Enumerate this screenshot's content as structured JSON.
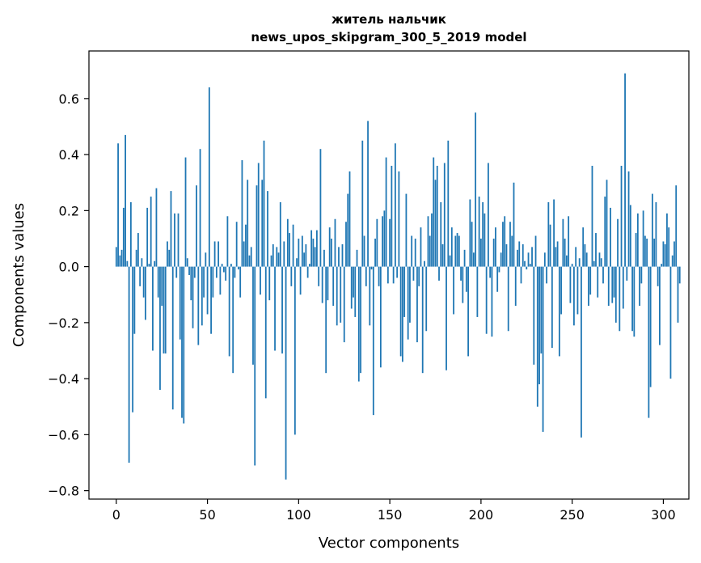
{
  "chart_data": {
    "type": "bar",
    "title": "житель нальчик",
    "subtitle": "news_upos_skipgram_300_5_2019 model",
    "xlabel": "Vector components",
    "ylabel": "Components values",
    "xlim": [
      -15,
      314
    ],
    "ylim": [
      -0.83,
      0.77
    ],
    "xticks": [
      0,
      50,
      100,
      150,
      200,
      250,
      300
    ],
    "yticks": [
      -0.8,
      -0.6,
      -0.4,
      -0.2,
      0.0,
      0.2,
      0.4,
      0.6
    ],
    "ytick_labels": [
      "−0.8",
      "−0.6",
      "−0.4",
      "−0.2",
      "0.0",
      "0.2",
      "0.4",
      "0.6"
    ],
    "bar_color": "#1f77b4",
    "grid": false,
    "values": [
      0.07,
      0.44,
      0.04,
      0.06,
      0.21,
      0.47,
      0.02,
      -0.7,
      0.23,
      -0.52,
      -0.24,
      0.06,
      0.12,
      -0.07,
      0.03,
      -0.11,
      -0.19,
      0.21,
      0.01,
      0.25,
      -0.3,
      0.02,
      0.28,
      -0.11,
      -0.44,
      -0.14,
      -0.31,
      -0.31,
      0.09,
      0.06,
      0.27,
      -0.51,
      0.19,
      -0.04,
      0.19,
      -0.26,
      -0.54,
      -0.56,
      0.39,
      0.03,
      -0.03,
      -0.12,
      -0.22,
      -0.04,
      0.29,
      -0.28,
      0.42,
      -0.21,
      -0.11,
      0.05,
      -0.17,
      0.64,
      -0.24,
      -0.11,
      0.09,
      -0.04,
      0.09,
      -0.1,
      0.01,
      -0.02,
      -0.05,
      0.18,
      -0.32,
      0.01,
      -0.38,
      -0.04,
      0.16,
      -0.01,
      -0.11,
      0.38,
      0.09,
      0.15,
      0.31,
      0.04,
      0.07,
      -0.35,
      -0.71,
      0.29,
      0.37,
      -0.1,
      0.31,
      0.45,
      -0.47,
      0.27,
      -0.12,
      0.04,
      0.08,
      -0.3,
      0.07,
      0.05,
      0.23,
      -0.31,
      0.09,
      -0.76,
      0.17,
      0.12,
      -0.07,
      0.15,
      -0.6,
      0.03,
      0.1,
      -0.1,
      0.11,
      0.05,
      0.08,
      -0.04,
      0.01,
      0.13,
      0.1,
      0.07,
      0.13,
      -0.07,
      0.42,
      -0.13,
      0.06,
      -0.38,
      -0.12,
      0.14,
      0.1,
      -0.14,
      0.17,
      -0.21,
      0.07,
      -0.2,
      0.08,
      -0.27,
      0.16,
      0.26,
      0.34,
      -0.15,
      -0.11,
      -0.18,
      0.06,
      -0.41,
      -0.38,
      0.45,
      0.11,
      -0.07,
      0.52,
      -0.21,
      -0.01,
      -0.53,
      0.1,
      0.17,
      -0.07,
      -0.36,
      0.18,
      0.2,
      0.39,
      -0.06,
      0.17,
      0.36,
      -0.06,
      0.44,
      -0.04,
      0.34,
      -0.32,
      -0.34,
      -0.18,
      0.26,
      -0.26,
      -0.2,
      0.11,
      -0.05,
      0.1,
      -0.27,
      -0.07,
      0.14,
      -0.38,
      0.02,
      -0.23,
      0.18,
      0.11,
      0.19,
      0.39,
      0.31,
      0.36,
      -0.05,
      0.23,
      0.08,
      0.37,
      -0.37,
      0.45,
      0.04,
      0.14,
      -0.17,
      0.11,
      0.12,
      0.11,
      -0.05,
      -0.13,
      0.06,
      -0.09,
      -0.32,
      0.24,
      0.16,
      0.05,
      0.55,
      -0.18,
      0.25,
      0.1,
      0.23,
      0.19,
      -0.24,
      0.37,
      -0.04,
      -0.25,
      0.1,
      0.14,
      -0.09,
      -0.02,
      0.05,
      0.16,
      0.18,
      0.08,
      -0.23,
      0.16,
      0.11,
      0.3,
      -0.14,
      0.06,
      0.09,
      -0.06,
      0.08,
      0.02,
      -0.01,
      0.05,
      0.01,
      0.07,
      -0.35,
      0.11,
      -0.5,
      -0.42,
      -0.31,
      -0.59,
      0.05,
      -0.06,
      0.23,
      0.15,
      -0.29,
      0.24,
      0.07,
      0.09,
      -0.32,
      -0.17,
      0.17,
      0.1,
      0.04,
      0.18,
      -0.13,
      0.01,
      -0.21,
      0.07,
      -0.17,
      0.03,
      -0.61,
      0.14,
      0.08,
      0.05,
      -0.14,
      -0.1,
      0.36,
      0.02,
      0.12,
      -0.11,
      0.05,
      0.03,
      -0.06,
      0.25,
      0.31,
      -0.14,
      0.21,
      -0.13,
      -0.11,
      -0.2,
      0.17,
      -0.23,
      0.36,
      -0.15,
      0.69,
      -0.05,
      0.34,
      0.22,
      -0.23,
      -0.25,
      0.12,
      0.19,
      -0.14,
      -0.06,
      0.2,
      0.11,
      0.1,
      -0.54,
      -0.43,
      0.26,
      0.1,
      0.23,
      -0.07,
      -0.28,
      0.01,
      0.09,
      0.08,
      0.19,
      0.14,
      -0.4,
      0.04,
      0.09,
      0.29,
      -0.2,
      -0.06
    ]
  }
}
